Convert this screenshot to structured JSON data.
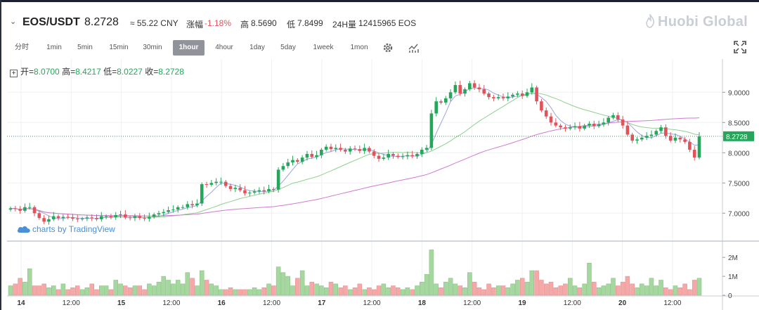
{
  "header": {
    "symbol": "EOS/USDT",
    "price": "8.2728",
    "cny": "≈ 55.22 CNY",
    "change_label": "涨幅",
    "change_value": "-1.18%",
    "high_label": "高",
    "high_value": "8.5690",
    "low_label": "低",
    "low_value": "7.8499",
    "volume_label": "24H量",
    "volume_value": "12415965 EOS",
    "logo": "Huobi Global"
  },
  "toolbar": {
    "timeframes": [
      "分时",
      "1min",
      "5min",
      "15min",
      "30min",
      "1hour",
      "4hour",
      "1day",
      "5day",
      "1week",
      "1mon"
    ],
    "active": "1hour",
    "icons": [
      "gear-icon",
      "indicator-icon"
    ],
    "fullscreen_icon": "fullscreen-icon"
  },
  "legend": {
    "open_label": "开=",
    "open": "8.0700",
    "high_label": "高=",
    "high": "8.4217",
    "low_label": "低=",
    "low": "8.0227",
    "close_label": "收=",
    "close": "8.2728"
  },
  "watermark": "charts by TradingView",
  "colors": {
    "up": "#26a65b",
    "down": "#e0535b",
    "up_vol": "#a7d7a0",
    "down_vol": "#f4a8a8",
    "ma_fast": "#9aa6e0",
    "ma_mid": "#8fd08f",
    "ma_slow": "#d07ad0",
    "last_price_line": "#26a65b"
  },
  "chart_data": {
    "type": "candlestick",
    "x_ticks": [
      "14",
      "12:00",
      "15",
      "12:00",
      "16",
      "12:00",
      "17",
      "12:00",
      "18",
      "12:00",
      "19",
      "12:00",
      "20",
      "12:00"
    ],
    "y_ticks": [
      "9.0000",
      "8.5000",
      "8.0000",
      "7.5000",
      "7.0000"
    ],
    "ylim": [
      6.55,
      9.55
    ],
    "volume_ticks": [
      "2M",
      "1M",
      "0"
    ],
    "volume_ylim": [
      0,
      2.6
    ],
    "last_price": "8.2728",
    "candles_close": [
      7.08,
      7.07,
      7.04,
      7.1,
      7.1,
      7.0,
      6.92,
      6.86,
      6.9,
      6.95,
      6.92,
      6.94,
      6.93,
      6.91,
      6.9,
      6.91,
      6.93,
      6.92,
      6.9,
      6.95,
      6.95,
      6.93,
      6.97,
      6.98,
      6.93,
      6.92,
      6.95,
      6.92,
      6.91,
      6.94,
      6.98,
      7.0,
      7.02,
      7.05,
      7.06,
      7.1,
      7.1,
      7.15,
      7.13,
      7.16,
      7.48,
      7.47,
      7.5,
      7.52,
      7.52,
      7.45,
      7.4,
      7.42,
      7.38,
      7.33,
      7.34,
      7.36,
      7.38,
      7.36,
      7.4,
      7.39,
      7.72,
      7.78,
      7.84,
      7.88,
      7.85,
      7.92,
      7.98,
      7.93,
      7.96,
      8.05,
      8.1,
      8.06,
      8.08,
      8.05,
      8.02,
      8.07,
      8.06,
      8.03,
      8.08,
      8.02,
      7.95,
      7.9,
      7.92,
      7.98,
      7.95,
      7.93,
      7.94,
      7.96,
      7.94,
      7.98,
      8.05,
      8.08,
      8.65,
      8.85,
      8.83,
      8.9,
      9.0,
      9.12,
      8.98,
      9.05,
      9.15,
      9.08,
      9.05,
      8.98,
      8.92,
      8.9,
      8.92,
      8.9,
      8.93,
      8.96,
      8.98,
      8.94,
      9.0,
      9.08,
      8.85,
      8.7,
      8.6,
      8.5,
      8.45,
      8.42,
      8.4,
      8.42,
      8.44,
      8.4,
      8.45,
      8.48,
      8.44,
      8.47,
      8.5,
      8.58,
      8.62,
      8.55,
      8.45,
      8.3,
      8.2,
      8.22,
      8.25,
      8.28,
      8.3,
      8.36,
      8.42,
      8.28,
      8.2,
      8.25,
      8.22,
      8.18,
      8.05,
      7.92,
      8.27
    ],
    "volumes": [
      0.5,
      0.6,
      0.9,
      0.7,
      1.4,
      0.5,
      0.5,
      0.6,
      0.4,
      0.5,
      0.3,
      0.6,
      0.3,
      0.4,
      0.5,
      0.3,
      0.4,
      0.6,
      0.3,
      0.5,
      0.5,
      0.3,
      0.8,
      0.6,
      0.5,
      0.4,
      0.5,
      0.5,
      0.3,
      0.6,
      0.5,
      0.7,
      1.0,
      0.8,
      0.6,
      0.8,
      0.6,
      1.2,
      0.9,
      0.5,
      1.3,
      0.8,
      0.6,
      0.5,
      0.3,
      0.3,
      0.4,
      0.3,
      0.3,
      0.3,
      0.3,
      0.4,
      0.3,
      0.4,
      0.6,
      0.5,
      1.5,
      1.2,
      1.0,
      0.5,
      0.9,
      1.3,
      0.5,
      0.7,
      0.6,
      0.5,
      0.4,
      0.7,
      0.6,
      0.4,
      0.5,
      0.3,
      0.4,
      0.6,
      0.3,
      0.4,
      0.3,
      0.5,
      0.6,
      0.4,
      0.5,
      0.4,
      0.3,
      0.4,
      0.3,
      0.5,
      0.7,
      1.1,
      2.4,
      0.6,
      0.4,
      0.7,
      0.9,
      0.6,
      0.5,
      0.4,
      1.2,
      0.7,
      0.4,
      0.3,
      0.6,
      0.4,
      0.5,
      0.5,
      0.4,
      0.6,
      0.8,
      0.9,
      0.7,
      1.3,
      1.3,
      0.8,
      0.6,
      0.7,
      0.4,
      0.5,
      0.6,
      0.9,
      0.5,
      0.4,
      0.6,
      1.7,
      0.7,
      0.4,
      0.5,
      0.6,
      0.9,
      0.5,
      0.7,
      1.0,
      0.6,
      0.4,
      0.6,
      0.5,
      0.9,
      0.5,
      0.8,
      0.4,
      0.3,
      0.5,
      0.4,
      0.6,
      0.3,
      0.8,
      0.9
    ]
  }
}
